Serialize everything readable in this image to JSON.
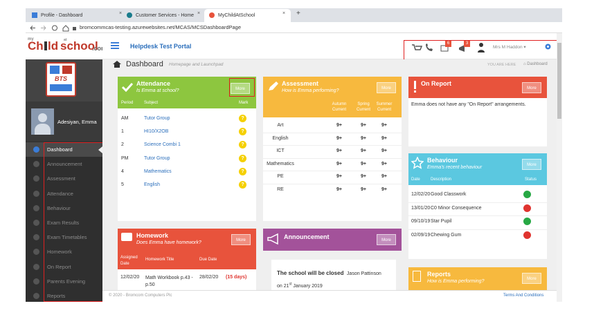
{
  "browser": {
    "tabs": [
      "Profile - Dashboard",
      "Customer Services - Home",
      "MyChildAtSchool"
    ],
    "url": "bromcommcas-testing.azurewebsites.net/MCAS/MCSDashboardPage"
  },
  "logo": {
    "my": "my",
    "ch": "Ch",
    "ld": "ld",
    "at": "at",
    "school": "school",
    "com": ".com"
  },
  "crest": "BTS",
  "profile": {
    "name": "Adesiyan, Emma"
  },
  "menu": [
    "Dashboard",
    "Announcement",
    "Assessment",
    "Attendance",
    "Behaviour",
    "Exam Results",
    "Exam Timetables",
    "Homework",
    "On Report",
    "Parents Evening",
    "Reports"
  ],
  "header": {
    "title": "Helpdesk Test Portal",
    "mail_count": 6,
    "alert_count": 3,
    "user": "Mrs M Haddon"
  },
  "breadcrumb": {
    "title": "Dashboard",
    "subtitle": "Homepage and Launchpad",
    "you_are_here": "YOU ARE HERE",
    "current": "Dashboard"
  },
  "attendance": {
    "title": "Attendance",
    "subtitle": "Is Emma at school?",
    "more": "More",
    "columns": [
      "Period",
      "Subject",
      "Mark"
    ],
    "rows": [
      [
        "AM",
        "Tutor Group",
        "?"
      ],
      [
        "1",
        "HI10/X2OB",
        "?"
      ],
      [
        "2",
        "Science Combi 1",
        "?"
      ],
      [
        "PM",
        "Tutor Group",
        "?"
      ],
      [
        "4",
        "Mathematics",
        "?"
      ],
      [
        "5",
        "English",
        "?"
      ]
    ]
  },
  "assessment": {
    "title": "Assessment",
    "subtitle": "How is Emma performing?",
    "more": "More",
    "columns": [
      "Autumn Current",
      "Spring Current",
      "Summer Current"
    ],
    "rows": [
      {
        "subject": "Art",
        "grades": [
          "9+",
          "9+",
          "9+"
        ]
      },
      {
        "subject": "English",
        "grades": [
          "9+",
          "9+",
          "9+"
        ]
      },
      {
        "subject": "ICT",
        "grades": [
          "9+",
          "9+",
          "9+"
        ]
      },
      {
        "subject": "Mathematics",
        "grades": [
          "9+",
          "9+",
          "9+"
        ]
      },
      {
        "subject": "PE",
        "grades": [
          "9+",
          "9+",
          "9+"
        ]
      },
      {
        "subject": "RE",
        "grades": [
          "9+",
          "9+",
          "9+"
        ]
      }
    ]
  },
  "on_report": {
    "title": "On Report",
    "more": "More",
    "text": "Emma does not have any \"On Report\" arrangements."
  },
  "behaviour": {
    "title": "Behaviour",
    "subtitle": "Emma's recent behaviour",
    "more": "More",
    "columns": [
      "Date",
      "Description",
      "Status"
    ],
    "rows": [
      {
        "date": "12/02/20",
        "description": "Good Classwork",
        "status": "positive"
      },
      {
        "date": "13/01/20",
        "description": "C0 Minor Consequence",
        "status": "negative"
      },
      {
        "date": "09/10/19",
        "description": "Star Pupil",
        "status": "positive"
      },
      {
        "date": "02/09/19",
        "description": "Chewing Gum",
        "status": "negative"
      }
    ]
  },
  "homework": {
    "title": "Homework",
    "subtitle": "Does Emma have homework?",
    "more": "More",
    "columns": [
      "Assigned Date",
      "Homework Title",
      "Due Date"
    ],
    "rows": [
      {
        "assigned": "12/02/20",
        "title": "Math Workbook p.43 - p.50",
        "due": "28/02/20",
        "remaining": "(15 days)"
      }
    ]
  },
  "announcement": {
    "title": "Announcement",
    "more": "More",
    "headline": "The school will be closed",
    "author": "Jason Pattinson",
    "date_pre": "on 21",
    "date_sup": "st",
    "date_post": "January 2019"
  },
  "reports": {
    "title": "Reports",
    "subtitle": "How is Emma performing?",
    "more": "More"
  },
  "footer": {
    "copyright": "© 2020 - Bromcom Computers Plc",
    "link": "Terms And Conditions"
  }
}
